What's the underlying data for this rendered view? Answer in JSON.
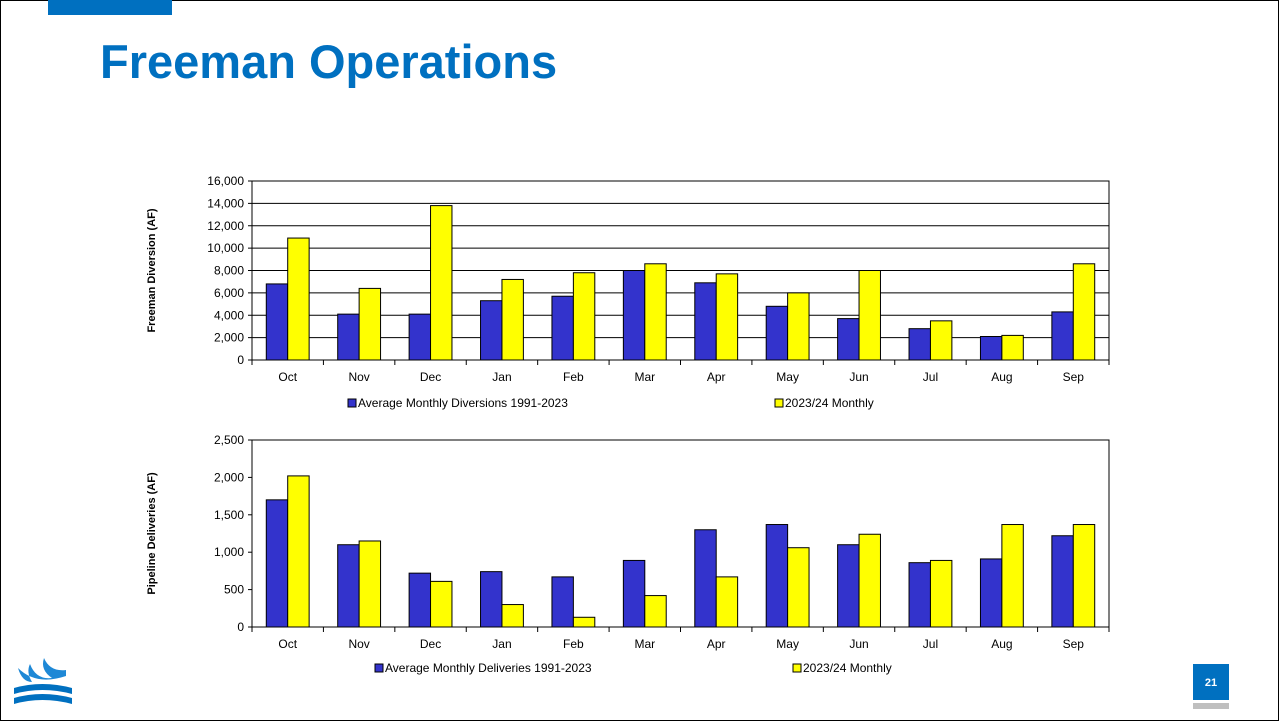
{
  "header": {
    "title": "Freeman Operations"
  },
  "page_number": "21",
  "chart_data": [
    {
      "type": "bar",
      "y_label": "Freeman Diversion (AF)",
      "categories": [
        "Oct",
        "Nov",
        "Dec",
        "Jan",
        "Feb",
        "Mar",
        "Apr",
        "May",
        "Jun",
        "Jul",
        "Aug",
        "Sep"
      ],
      "series": [
        {
          "name": "Average Monthly Diversions 1991-2023",
          "color": "#3333cc",
          "values": [
            6800,
            4100,
            4100,
            5300,
            5700,
            8000,
            6900,
            4800,
            3700,
            2800,
            2100,
            4300
          ]
        },
        {
          "name": "2023/24 Monthly",
          "color": "#ffff00",
          "values": [
            10900,
            6400,
            13800,
            7200,
            7800,
            8600,
            7700,
            6000,
            8000,
            3500,
            2200,
            8600
          ]
        }
      ],
      "ylim": [
        0,
        16000
      ],
      "yticks": [
        0,
        {
          "value": 2000,
          "label": "2,000"
        },
        {
          "value": 4000,
          "label": "4,000"
        },
        {
          "value": 6000,
          "label": "6,000"
        },
        {
          "value": 8000,
          "label": "8,000"
        },
        {
          "value": 10000,
          "label": "10,000"
        },
        {
          "value": 12000,
          "label": "12,000"
        },
        {
          "value": 14000,
          "label": "14,000"
        },
        {
          "value": 16000,
          "label": "16,000"
        }
      ],
      "grid": true
    },
    {
      "type": "bar",
      "y_label": "Pipeline Deliveries (AF)",
      "categories": [
        "Oct",
        "Nov",
        "Dec",
        "Jan",
        "Feb",
        "Mar",
        "Apr",
        "May",
        "Jun",
        "Jul",
        "Aug",
        "Sep"
      ],
      "series": [
        {
          "name": "Average Monthly Deliveries 1991-2023",
          "color": "#3333cc",
          "values": [
            1700,
            1100,
            720,
            740,
            670,
            890,
            1300,
            1370,
            1100,
            860,
            910,
            1220
          ]
        },
        {
          "name": "2023/24 Monthly",
          "color": "#ffff00",
          "values": [
            2020,
            1150,
            610,
            300,
            130,
            420,
            670,
            1060,
            1240,
            890,
            1370,
            1370
          ]
        }
      ],
      "ylim": [
        0,
        2500
      ],
      "yticks": [
        0,
        500,
        {
          "value": 1000,
          "label": "1,000"
        },
        {
          "value": 1500,
          "label": "1,500"
        },
        {
          "value": 2000,
          "label": "2,000"
        },
        {
          "value": 2500,
          "label": "2,500"
        }
      ],
      "grid": false
    }
  ]
}
